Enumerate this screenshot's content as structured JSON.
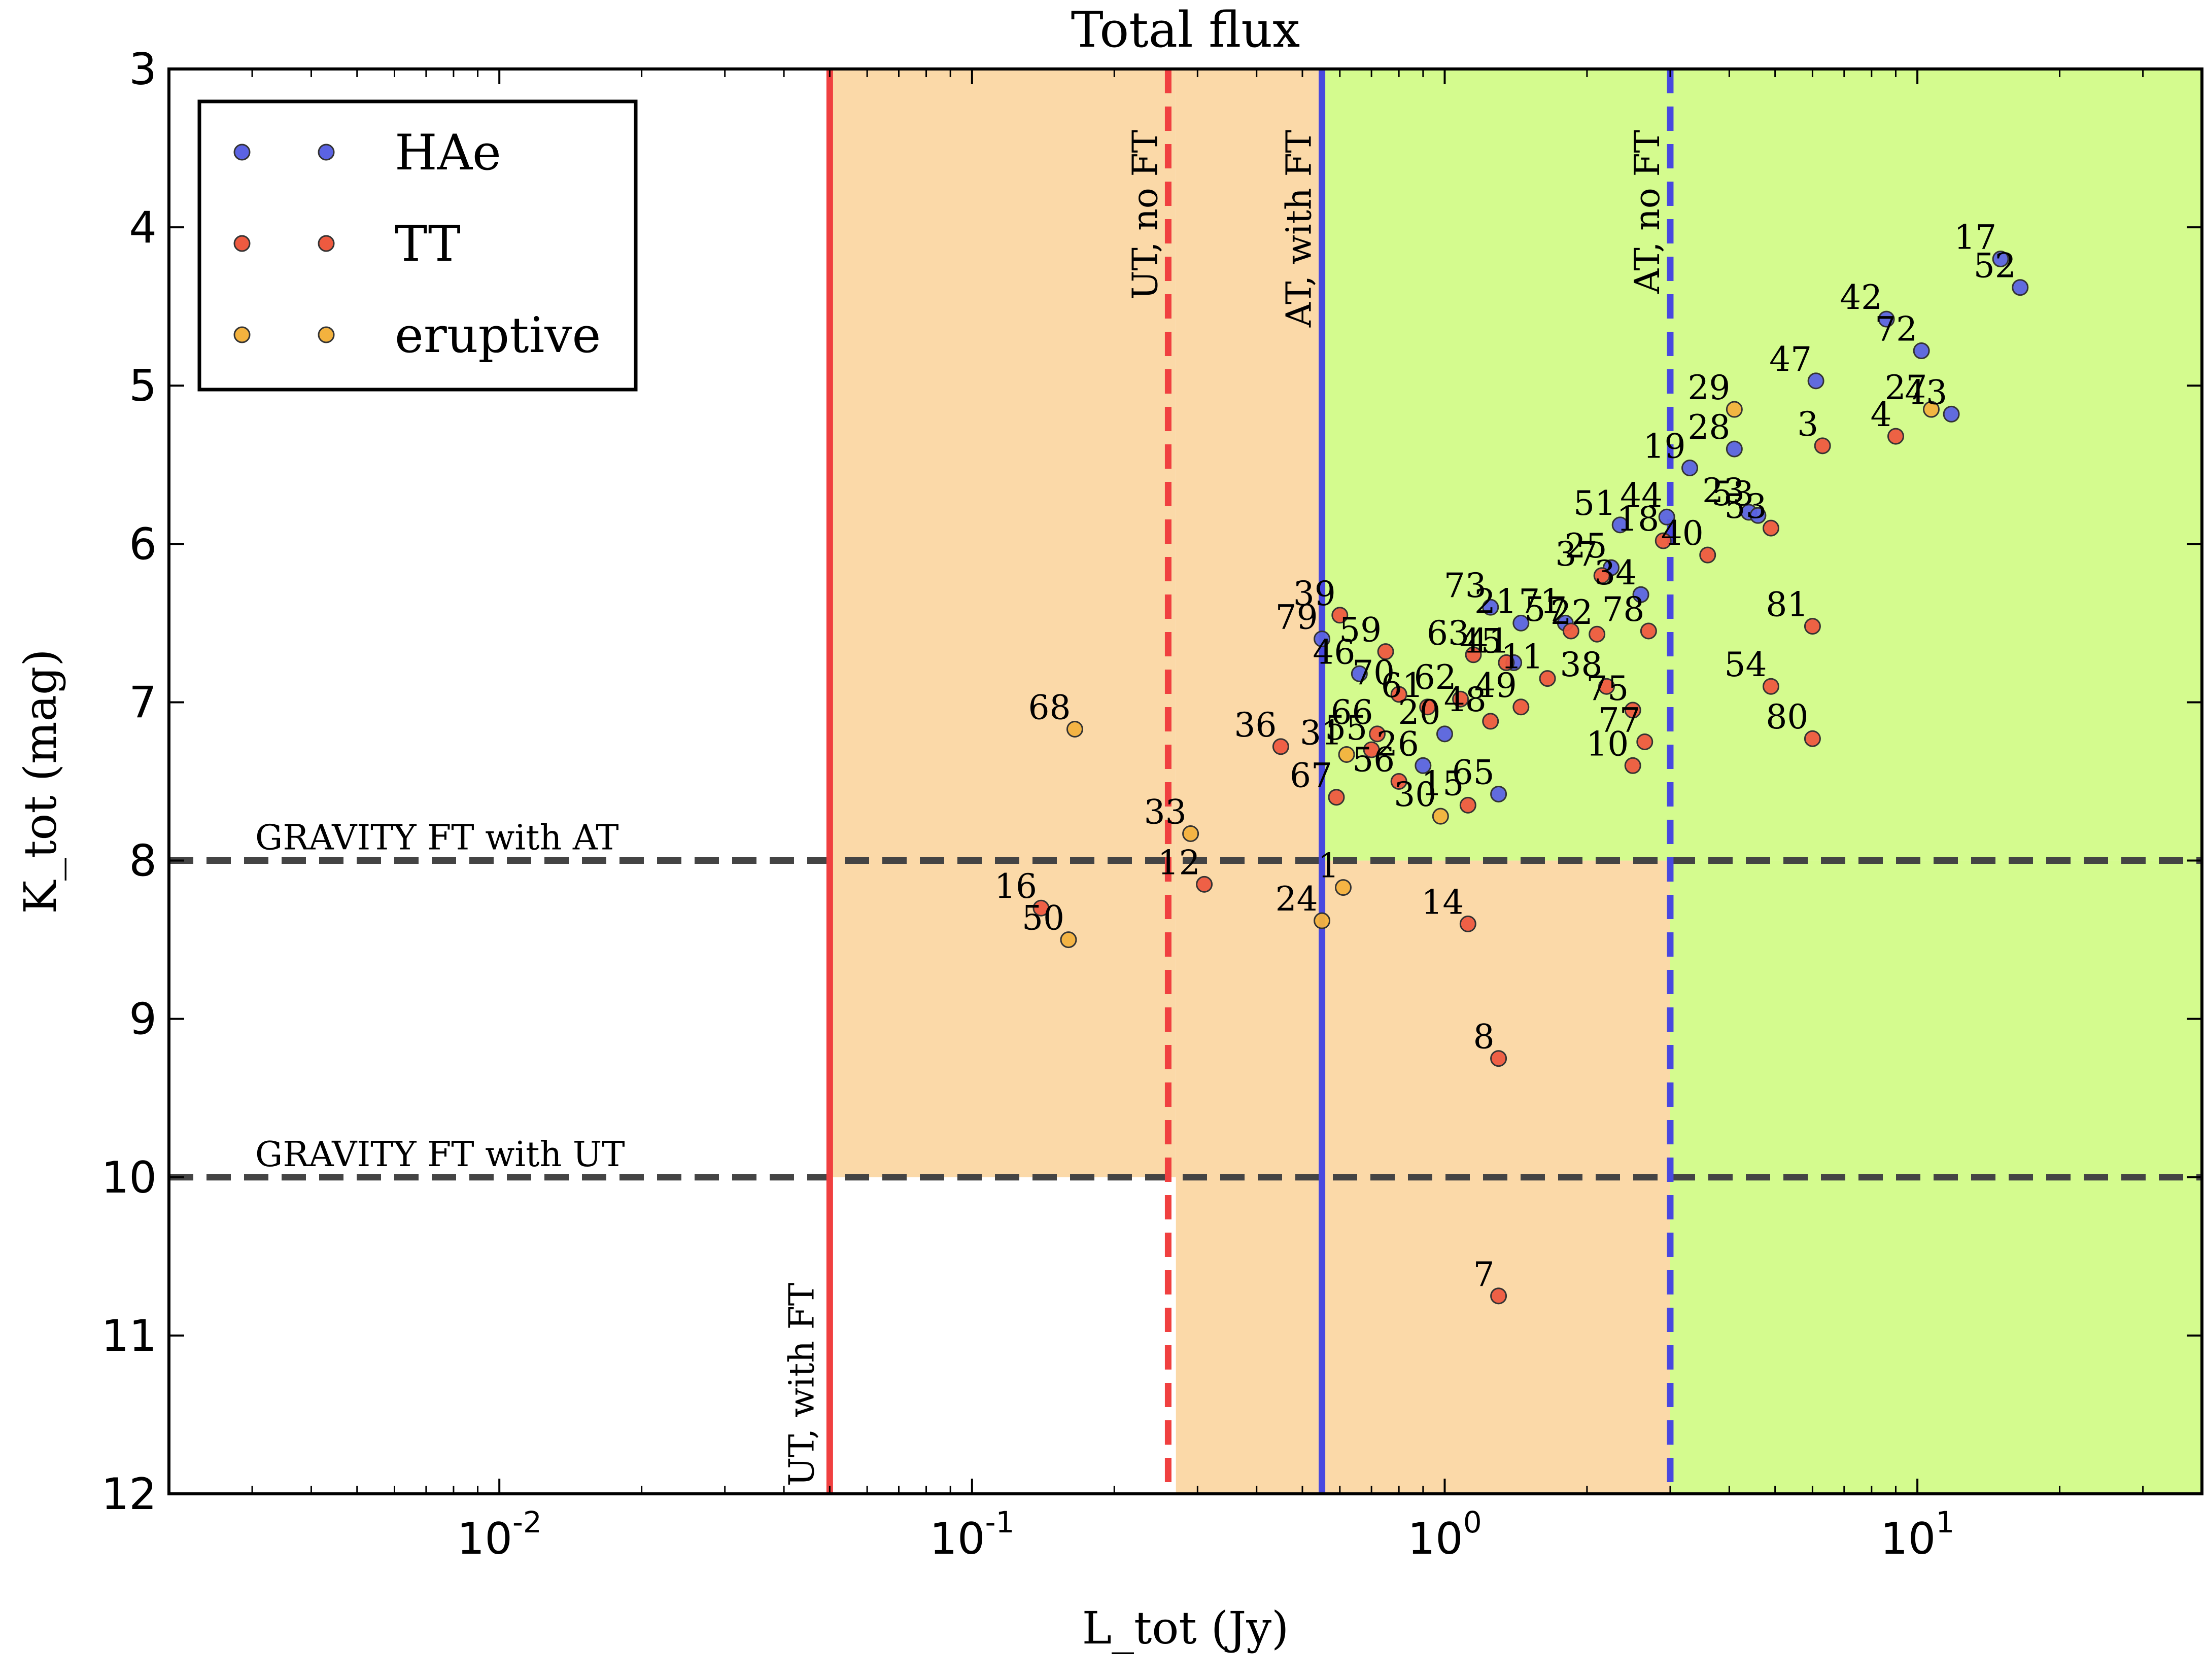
{
  "chart_data": {
    "type": "scatter",
    "title": "Total flux",
    "xlabel": "L_tot (Jy)",
    "ylabel": "K_tot (mag)",
    "xscale": "log",
    "xlim": [
      0.002,
      40
    ],
    "ylim": [
      12,
      3
    ],
    "x_ticks": [
      {
        "value": 0.01,
        "base": "10",
        "exp": "-2"
      },
      {
        "value": 0.1,
        "base": "10",
        "exp": "-1"
      },
      {
        "value": 1,
        "base": "10",
        "exp": "0"
      },
      {
        "value": 10,
        "base": "10",
        "exp": "1"
      }
    ],
    "y_ticks": [
      3,
      4,
      5,
      6,
      7,
      8,
      9,
      10,
      11,
      12
    ],
    "legend": {
      "position": "top-left",
      "entries": [
        {
          "key": "HAe",
          "label": "HAe",
          "color": "#5b63e3"
        },
        {
          "key": "TT",
          "label": "TT",
          "color": "#ee5a40"
        },
        {
          "key": "eruptive",
          "label": "eruptive",
          "color": "#f3b23e"
        }
      ]
    },
    "regions": [
      {
        "x": [
          0.05,
          0.27
        ],
        "y": [
          3,
          10
        ],
        "color": "#fbd9a8"
      },
      {
        "x": [
          0.27,
          0.55
        ],
        "y": [
          3,
          12
        ],
        "color": "#fbd9a8"
      },
      {
        "x": [
          0.55,
          3.0
        ],
        "y": [
          8,
          12
        ],
        "color": "#fbd9a8"
      },
      {
        "x": [
          0.55,
          40
        ],
        "y": [
          3,
          8
        ],
        "color": "#d4fb8e"
      },
      {
        "x": [
          3.0,
          40
        ],
        "y": [
          8,
          12
        ],
        "color": "#d4fb8e"
      }
    ],
    "vertical_lines": [
      {
        "x": 0.05,
        "style": "solid",
        "color": "#f04040",
        "label": "UT, with FT",
        "label_pos": "bottom"
      },
      {
        "x": 0.26,
        "style": "dashed",
        "color": "#f04040",
        "label": "UT, no FT",
        "label_pos": "top"
      },
      {
        "x": 0.55,
        "style": "solid",
        "color": "#4848e0",
        "label": "AT, with FT",
        "label_pos": "top"
      },
      {
        "x": 3.0,
        "style": "dashed",
        "color": "#4848e0",
        "label": "AT, no FT",
        "label_pos": "top"
      }
    ],
    "horizontal_lines": [
      {
        "y": 8,
        "style": "dashed",
        "color": "#444444",
        "label": "GRAVITY FT with AT"
      },
      {
        "y": 10,
        "style": "dashed",
        "color": "#444444",
        "label": "GRAVITY FT with UT"
      }
    ],
    "series": [
      {
        "name": "HAe",
        "color": "#5b63e3",
        "points": [
          {
            "id": "17",
            "x": 15.0,
            "y": 4.2
          },
          {
            "id": "52",
            "x": 16.5,
            "y": 4.38
          },
          {
            "id": "42",
            "x": 8.6,
            "y": 4.58
          },
          {
            "id": "72",
            "x": 10.2,
            "y": 4.78
          },
          {
            "id": "47",
            "x": 6.1,
            "y": 4.97
          },
          {
            "id": "43",
            "x": 11.8,
            "y": 5.18
          },
          {
            "id": "28",
            "x": 4.1,
            "y": 5.4
          },
          {
            "id": "19",
            "x": 3.3,
            "y": 5.52
          },
          {
            "id": "23",
            "x": 4.4,
            "y": 5.8
          },
          {
            "id": "53",
            "x": 4.6,
            "y": 5.82
          },
          {
            "id": "51",
            "x": 2.35,
            "y": 5.88
          },
          {
            "id": "44",
            "x": 2.95,
            "y": 5.83
          },
          {
            "id": "25",
            "x": 2.25,
            "y": 6.15
          },
          {
            "id": "34",
            "x": 2.6,
            "y": 6.32
          },
          {
            "id": "73",
            "x": 1.25,
            "y": 6.4
          },
          {
            "id": "21",
            "x": 1.45,
            "y": 6.5
          },
          {
            "id": "71",
            "x": 1.8,
            "y": 6.5
          },
          {
            "id": "79",
            "x": 0.55,
            "y": 6.6
          },
          {
            "id": "46",
            "x": 0.66,
            "y": 6.82
          },
          {
            "id": "41",
            "x": 1.4,
            "y": 6.75
          },
          {
            "id": "20",
            "x": 1.0,
            "y": 7.2
          },
          {
            "id": "26",
            "x": 0.9,
            "y": 7.4
          },
          {
            "id": "65",
            "x": 1.3,
            "y": 7.58
          }
        ]
      },
      {
        "name": "TT",
        "color": "#ee5a40",
        "points": [
          {
            "id": "3",
            "x": 6.3,
            "y": 5.38
          },
          {
            "id": "4",
            "x": 9.0,
            "y": 5.32
          },
          {
            "id": "53",
            "x": 4.9,
            "y": 5.9
          },
          {
            "id": "18",
            "x": 2.9,
            "y": 5.98
          },
          {
            "id": "40",
            "x": 3.6,
            "y": 6.07
          },
          {
            "id": "37",
            "x": 2.15,
            "y": 6.2
          },
          {
            "id": "39",
            "x": 0.6,
            "y": 6.45
          },
          {
            "id": "22",
            "x": 2.1,
            "y": 6.57
          },
          {
            "id": "57",
            "x": 1.85,
            "y": 6.55
          },
          {
            "id": "78",
            "x": 2.7,
            "y": 6.55
          },
          {
            "id": "81",
            "x": 6.0,
            "y": 6.52
          },
          {
            "id": "59",
            "x": 0.75,
            "y": 6.68
          },
          {
            "id": "63",
            "x": 1.15,
            "y": 6.7
          },
          {
            "id": "45",
            "x": 1.35,
            "y": 6.75
          },
          {
            "id": "11",
            "x": 1.65,
            "y": 6.85
          },
          {
            "id": "70",
            "x": 0.8,
            "y": 6.95
          },
          {
            "id": "61",
            "x": 0.92,
            "y": 7.03
          },
          {
            "id": "62",
            "x": 1.08,
            "y": 6.98
          },
          {
            "id": "48",
            "x": 1.25,
            "y": 7.12
          },
          {
            "id": "49",
            "x": 1.45,
            "y": 7.03
          },
          {
            "id": "38",
            "x": 2.2,
            "y": 6.9
          },
          {
            "id": "75",
            "x": 2.5,
            "y": 7.05
          },
          {
            "id": "54",
            "x": 4.9,
            "y": 6.9
          },
          {
            "id": "77",
            "x": 2.65,
            "y": 7.25
          },
          {
            "id": "10",
            "x": 2.5,
            "y": 7.4
          },
          {
            "id": "80",
            "x": 6.0,
            "y": 7.23
          },
          {
            "id": "36",
            "x": 0.45,
            "y": 7.28
          },
          {
            "id": "66",
            "x": 0.72,
            "y": 7.2
          },
          {
            "id": "55",
            "x": 0.7,
            "y": 7.3
          },
          {
            "id": "56",
            "x": 0.8,
            "y": 7.5
          },
          {
            "id": "67",
            "x": 0.59,
            "y": 7.6
          },
          {
            "id": "15",
            "x": 1.12,
            "y": 7.65
          },
          {
            "id": "12",
            "x": 0.31,
            "y": 8.15
          },
          {
            "id": "16",
            "x": 0.14,
            "y": 8.3
          },
          {
            "id": "14",
            "x": 1.12,
            "y": 8.4
          },
          {
            "id": "8",
            "x": 1.3,
            "y": 9.25
          },
          {
            "id": "7",
            "x": 1.3,
            "y": 10.75
          }
        ]
      },
      {
        "name": "eruptive",
        "color": "#f3b23e",
        "points": [
          {
            "id": "29",
            "x": 4.1,
            "y": 5.15
          },
          {
            "id": "27",
            "x": 10.7,
            "y": 5.15
          },
          {
            "id": "68",
            "x": 0.165,
            "y": 7.17
          },
          {
            "id": "31",
            "x": 0.62,
            "y": 7.33
          },
          {
            "id": "30",
            "x": 0.98,
            "y": 7.72
          },
          {
            "id": "33",
            "x": 0.29,
            "y": 7.83
          },
          {
            "id": "1",
            "x": 0.61,
            "y": 8.17
          },
          {
            "id": "24",
            "x": 0.55,
            "y": 8.38
          },
          {
            "id": "50",
            "x": 0.16,
            "y": 8.5
          }
        ]
      }
    ]
  }
}
